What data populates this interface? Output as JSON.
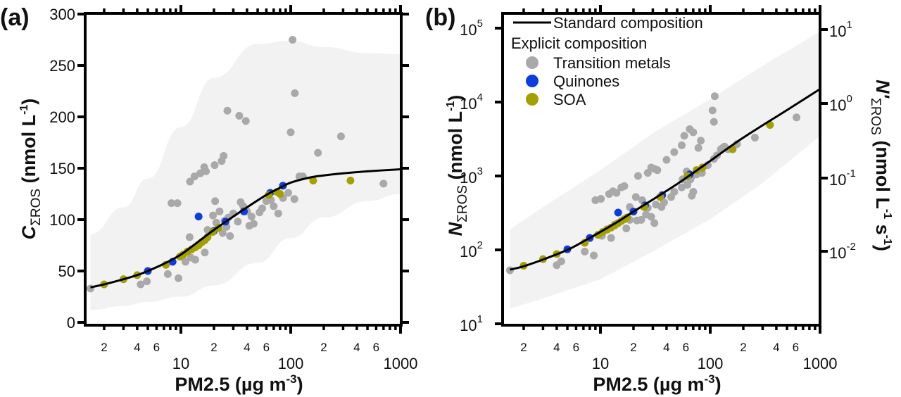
{
  "chart_data": [
    {
      "panel_label": "(a)",
      "type": "scatter",
      "xscale": "log",
      "yscale": "linear",
      "xlabel": "PM2.5 (µg m",
      "xlabel_sup": "-3",
      "xlabel_end": ")",
      "ylabel_main": "C",
      "ylabel_sub": "ΣROS",
      "ylabel_units": " (nmol L",
      "ylabel_sup": "-1",
      "ylabel_end": ")",
      "xlim": [
        1.35,
        1000
      ],
      "ylim": [
        -3,
        305
      ],
      "x_major_ticks": [
        {
          "value": 10,
          "label": "10"
        },
        {
          "value": 100,
          "label": "100"
        },
        {
          "value": 1000,
          "label": "1000"
        }
      ],
      "x_minor_labels": [
        {
          "value": 2,
          "label": "2"
        },
        {
          "value": 4,
          "label": "4"
        },
        {
          "value": 6,
          "label": "6"
        },
        {
          "value": 20,
          "label": "2"
        },
        {
          "value": 40,
          "label": "4"
        },
        {
          "value": 60,
          "label": "6"
        },
        {
          "value": 200,
          "label": "2"
        },
        {
          "value": 400,
          "label": "4"
        },
        {
          "value": 600,
          "label": "6"
        }
      ],
      "y_ticks": [
        {
          "value": 0,
          "label": "0"
        },
        {
          "value": 50,
          "label": "50"
        },
        {
          "value": 100,
          "label": "100"
        },
        {
          "value": 150,
          "label": "150"
        },
        {
          "value": 200,
          "label": "200"
        },
        {
          "value": 250,
          "label": "250"
        },
        {
          "value": 300,
          "label": "300"
        }
      ],
      "standard_curve": {
        "name": "Standard composition",
        "x": [
          1.5,
          2,
          3,
          4,
          5,
          7,
          10,
          15,
          20,
          30,
          40,
          60,
          80,
          100,
          150,
          200,
          300,
          500,
          1000
        ],
        "y": [
          34,
          37,
          42,
          46,
          50,
          57,
          66,
          80,
          90,
          103,
          112,
          124,
          131,
          136,
          141,
          143,
          145,
          147,
          149
        ]
      },
      "band_upper": {
        "x": [
          1.5,
          3,
          5,
          10,
          20,
          50,
          100,
          200,
          500,
          1000
        ],
        "y": [
          86,
          112,
          140,
          190,
          238,
          271,
          274,
          268,
          262,
          261
        ]
      },
      "band_lower": {
        "x": [
          1.5,
          3,
          5,
          10,
          20,
          50,
          100,
          200,
          500,
          1000
        ],
        "y": [
          12,
          16,
          20,
          25,
          36,
          58,
          82,
          102,
          118,
          125
        ]
      },
      "series": [
        {
          "name": "Transition metals",
          "color": "#a9a9a9",
          "points": [
            [
              1.5,
              33
            ],
            [
              4.3,
              37
            ],
            [
              4.9,
              40
            ],
            [
              7.6,
              47
            ],
            [
              9.5,
              43
            ],
            [
              11,
              59
            ],
            [
              12.3,
              63
            ],
            [
              13.5,
              61
            ],
            [
              16.5,
              68
            ],
            [
              12,
              83
            ],
            [
              17.5,
              90
            ],
            [
              21,
              97
            ],
            [
              19.6,
              104
            ],
            [
              20.5,
              118
            ],
            [
              22.5,
              108
            ],
            [
              25,
              99
            ],
            [
              27,
              102
            ],
            [
              24,
              87
            ],
            [
              26,
              93
            ],
            [
              28,
              84
            ],
            [
              30,
              106
            ],
            [
              33,
              98
            ],
            [
              35,
              117
            ],
            [
              37,
              113
            ],
            [
              40,
              108
            ],
            [
              44,
              103
            ],
            [
              42,
              94
            ],
            [
              46,
              96
            ],
            [
              52,
              107
            ],
            [
              55,
              111
            ],
            [
              60,
              118
            ],
            [
              66,
              119
            ],
            [
              70,
              113
            ],
            [
              77,
              106
            ],
            [
              85,
              121
            ],
            [
              95,
              126
            ],
            [
              108,
              120
            ],
            [
              120,
              142
            ],
            [
              9.3,
              116
            ],
            [
              8.2,
              116
            ],
            [
              12.1,
              137
            ],
            [
              13.3,
              142
            ],
            [
              15,
              145
            ],
            [
              16.3,
              151
            ],
            [
              16.9,
              147
            ],
            [
              20.3,
              153
            ],
            [
              23.5,
              157
            ],
            [
              24.5,
              162
            ],
            [
              26.5,
              206
            ],
            [
              34,
              201
            ],
            [
              39,
              196
            ],
            [
              104,
              275
            ],
            [
              109,
              223
            ],
            [
              100,
              185
            ],
            [
              177,
              165
            ],
            [
              287,
              181
            ],
            [
              129,
              142
            ],
            [
              700,
              135
            ]
          ]
        },
        {
          "name": "Quinones",
          "color": "#0a3ee0",
          "points": [
            [
              5.0,
              50
            ],
            [
              8.4,
              59
            ],
            [
              14.5,
              103
            ],
            [
              20,
              89
            ],
            [
              25.5,
              98
            ],
            [
              37.5,
              108
            ],
            [
              65,
              126
            ],
            [
              85,
              133
            ]
          ]
        },
        {
          "name": "SOA",
          "color": "#a3a000",
          "points": [
            [
              2.0,
              37
            ],
            [
              3.0,
              42
            ],
            [
              4.0,
              46
            ],
            [
              7.3,
              56
            ],
            [
              9.8,
              64
            ],
            [
              10.5,
              66
            ],
            [
              11.5,
              69
            ],
            [
              12.5,
              71
            ],
            [
              13.5,
              73
            ],
            [
              14.5,
              75
            ],
            [
              15.5,
              78
            ],
            [
              16.5,
              80
            ],
            [
              17.5,
              83
            ],
            [
              19.5,
              88
            ],
            [
              22,
              92
            ],
            [
              63,
              124
            ],
            [
              75,
              127
            ],
            [
              80,
              125
            ],
            [
              160,
              138
            ],
            [
              350,
              138
            ]
          ]
        }
      ]
    },
    {
      "panel_label": "(b)",
      "type": "scatter",
      "xscale": "log",
      "yscale": "log",
      "xlabel": "PM2.5 (µg m",
      "xlabel_sup": "-3",
      "xlabel_end": ")",
      "ylabel_main": "N",
      "ylabel_sub": "ΣROS",
      "ylabel_units": " (nmol L",
      "ylabel_sup": "-1",
      "ylabel_end": ")",
      "ylabel_right_main": "N'",
      "ylabel_right_sub": "ΣROS",
      "ylabel_right_units": " (nmol L",
      "ylabel_right_sup1": "-1",
      "ylabel_right_mid": " s",
      "ylabel_right_sup2": "-1",
      "ylabel_right_end": ")",
      "xlim": [
        1.35,
        1000
      ],
      "ylim": [
        8,
        150000
      ],
      "x_major_ticks": [
        {
          "value": 10,
          "label": "10"
        },
        {
          "value": 100,
          "label": "100"
        },
        {
          "value": 1000,
          "label": "1000"
        }
      ],
      "x_minor_labels": [
        {
          "value": 2,
          "label": "2"
        },
        {
          "value": 4,
          "label": "4"
        },
        {
          "value": 6,
          "label": "6"
        },
        {
          "value": 20,
          "label": "2"
        },
        {
          "value": 40,
          "label": "4"
        },
        {
          "value": 60,
          "label": "6"
        },
        {
          "value": 200,
          "label": "2"
        },
        {
          "value": 400,
          "label": "4"
        },
        {
          "value": 600,
          "label": "6"
        }
      ],
      "y_ticks": [
        {
          "value": 10,
          "base": "10",
          "exp": "1"
        },
        {
          "value": 100,
          "base": "10",
          "exp": "2"
        },
        {
          "value": 1000,
          "base": "10",
          "exp": "3"
        },
        {
          "value": 10000,
          "base": "10",
          "exp": "4"
        },
        {
          "value": 100000,
          "base": "10",
          "exp": "5"
        }
      ],
      "y_right_ticks": [
        {
          "value": 0.01,
          "base": "10",
          "exp": "-2"
        },
        {
          "value": 0.1,
          "base": "10",
          "exp": "-1"
        },
        {
          "value": 1,
          "base": "10",
          "exp": "0"
        },
        {
          "value": 10,
          "base": "10",
          "exp": "1"
        }
      ],
      "y_right_range": [
        0.0008,
        13
      ],
      "standard_curve": {
        "name": "Standard composition",
        "x": [
          1.5,
          2,
          3,
          5,
          7,
          10,
          15,
          20,
          30,
          50,
          70,
          100,
          200,
          500,
          1000
        ],
        "y": [
          54,
          60,
          74,
          100,
          130,
          175,
          250,
          330,
          480,
          780,
          1100,
          1600,
          3300,
          7800,
          15000
        ]
      },
      "band_upper": {
        "x": [
          1.5,
          3,
          10,
          30,
          100,
          300,
          1000
        ],
        "y": [
          190,
          380,
          1200,
          3800,
          11000,
          31000,
          90000
        ]
      },
      "band_lower": {
        "x": [
          1.5,
          3,
          10,
          30,
          100,
          300,
          1000
        ],
        "y": [
          16,
          22,
          40,
          95,
          260,
          800,
          3500
        ]
      },
      "series": [
        {
          "name": "Transition metals",
          "color": "#a9a9a9",
          "points": [
            [
              1.5,
              53
            ],
            [
              4.0,
              62
            ],
            [
              4.4,
              70
            ],
            [
              7.2,
              95
            ],
            [
              8.7,
              84
            ],
            [
              10.3,
              155
            ],
            [
              12.5,
              145
            ],
            [
              11.5,
              190
            ],
            [
              13.5,
              220
            ],
            [
              17.2,
              195
            ],
            [
              18.5,
              255
            ],
            [
              21.5,
              250
            ],
            [
              23.5,
              255
            ],
            [
              26,
              300
            ],
            [
              29,
              280
            ],
            [
              31,
              230
            ],
            [
              18.5,
              380
            ],
            [
              24,
              470
            ],
            [
              27,
              370
            ],
            [
              21,
              520
            ],
            [
              32,
              410
            ],
            [
              36,
              380
            ],
            [
              38,
              440
            ],
            [
              44,
              520
            ],
            [
              47,
              610
            ],
            [
              55,
              700
            ],
            [
              62,
              760
            ],
            [
              56,
              900
            ],
            [
              68,
              1000
            ],
            [
              75,
              1050
            ],
            [
              61,
              1150
            ],
            [
              66,
              900
            ],
            [
              70,
              610
            ],
            [
              68,
              540
            ],
            [
              84,
              1100
            ],
            [
              95,
              1400
            ],
            [
              108,
              1700
            ],
            [
              115,
              1900
            ],
            [
              125,
              2300
            ],
            [
              130,
              2400
            ],
            [
              135,
              2500
            ],
            [
              145,
              2300
            ],
            [
              175,
              2700
            ],
            [
              255,
              3300
            ],
            [
              108,
              5400
            ],
            [
              110,
              12000
            ],
            [
              105,
              7700
            ],
            [
              610,
              6200
            ],
            [
              9.0,
              470
            ],
            [
              10.1,
              490
            ],
            [
              12,
              570
            ],
            [
              13.0,
              620
            ],
            [
              14,
              590
            ],
            [
              15.5,
              700
            ],
            [
              16.5,
              730
            ],
            [
              22,
              1000
            ],
            [
              27,
              1100
            ],
            [
              29,
              1300
            ],
            [
              31,
              1250
            ],
            [
              33,
              1200
            ],
            [
              40,
              1650
            ],
            [
              47,
              2100
            ],
            [
              55,
              2600
            ],
            [
              58,
              3500
            ],
            [
              65,
              4300
            ],
            [
              70,
              3900
            ],
            [
              78,
              2400
            ],
            [
              82,
              3000
            ]
          ]
        },
        {
          "name": "Quinones",
          "color": "#0a3ee0",
          "points": [
            [
              5.0,
              102
            ],
            [
              8.0,
              145
            ],
            [
              14.5,
              320
            ],
            [
              20,
              330
            ],
            [
              25.5,
              400
            ],
            [
              36.5,
              550
            ],
            [
              65,
              1050
            ],
            [
              85,
              1300
            ]
          ]
        },
        {
          "name": "SOA",
          "color": "#a3a000",
          "points": [
            [
              2.0,
              61
            ],
            [
              3.0,
              75
            ],
            [
              4.0,
              88
            ],
            [
              7.2,
              125
            ],
            [
              9.5,
              160
            ],
            [
              10.5,
              175
            ],
            [
              11.5,
              188
            ],
            [
              12.5,
              200
            ],
            [
              13.5,
              215
            ],
            [
              14.5,
              230
            ],
            [
              15.5,
              245
            ],
            [
              16.5,
              260
            ],
            [
              17.5,
              275
            ],
            [
              25,
              380
            ],
            [
              35,
              520
            ],
            [
              62,
              1000
            ],
            [
              75,
              1200
            ],
            [
              85,
              1300
            ],
            [
              160,
              2300
            ],
            [
              350,
              4900
            ]
          ]
        }
      ],
      "legend": {
        "placement": "top-left",
        "line_label": "Standard composition",
        "group_title": "Explicit composition",
        "items": [
          "Transition metals",
          "Quinones",
          "SOA"
        ]
      }
    }
  ],
  "band_color": "#f2f2f2",
  "line_color": "#000000"
}
